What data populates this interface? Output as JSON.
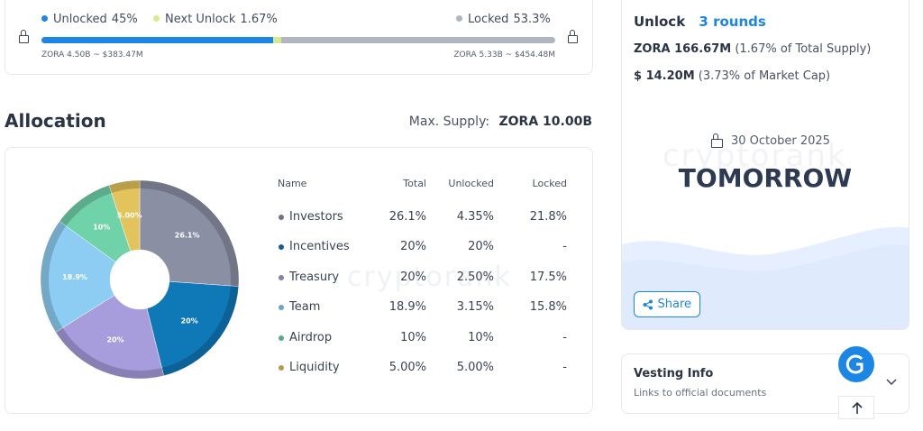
{
  "progress": {
    "segments": [
      {
        "name": "Unlocked",
        "value": 45,
        "label": "45%",
        "color": "#1b86e3"
      },
      {
        "name": "Next Unlock",
        "value": 1.67,
        "label": "1.67%",
        "color": "#d7ea8c"
      },
      {
        "name": "Locked",
        "value": 53.3,
        "label": "53.3%",
        "color": "#b1b5c0"
      }
    ],
    "left_note": "ZORA 4.50B ~ $383.47M",
    "right_note": "ZORA 5.33B ~ $454.48M"
  },
  "allocation": {
    "title": "Allocation",
    "max_supply_label": "Max. Supply:",
    "max_supply": "ZORA 10.00B",
    "watermark": "cryptorank"
  },
  "chart_data": {
    "type": "pie",
    "categories": [
      "Investors",
      "Incentives",
      "Treasury",
      "Team",
      "Airdrop",
      "Liquidity"
    ],
    "values": [
      26.1,
      20,
      20,
      18.9,
      10,
      5
    ],
    "value_labels": [
      "26.1%",
      "20%",
      "20%",
      "18.9%",
      "10%",
      "5.00%"
    ],
    "colors": [
      "#8a8fa3",
      "#0f78b7",
      "#a79cdc",
      "#8dcdf3",
      "#70d2a9",
      "#e3c35c"
    ]
  },
  "table": {
    "columns": [
      "Name",
      "Total",
      "Unlocked",
      "Locked"
    ],
    "rows": [
      [
        "4.35%",
        "21.8%"
      ],
      [
        "20%",
        "-"
      ],
      [
        "2.50%",
        "17.5%"
      ],
      [
        "3.15%",
        "15.8%"
      ],
      [
        "10%",
        "-"
      ],
      [
        "5.00%",
        "-"
      ]
    ]
  },
  "unlock_card": {
    "title": "Unlock",
    "rounds": "3 rounds",
    "amount": "ZORA 166.67M",
    "amount_note": "(1.67% of Total Supply)",
    "value": "$ 14.20M",
    "value_note": "(3.73% of Market Cap)",
    "date": "30 October 2025",
    "countdown": "TOMORROW",
    "watermark": "cryptorank",
    "share": "Share"
  },
  "vesting": {
    "title": "Vesting Info",
    "subtitle": "Links to official documents"
  }
}
